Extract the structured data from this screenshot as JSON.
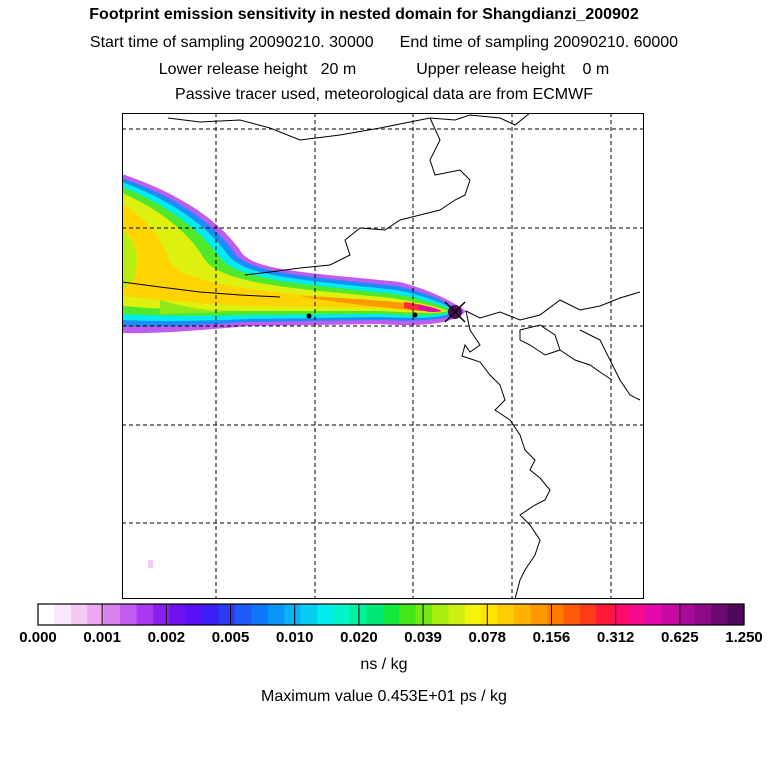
{
  "header": {
    "title": "Footprint emission sensitivity in nested domain for Shangdianzi_200902",
    "start_label": "Start time of sampling 20090210. 30000",
    "end_label": "End time of sampling 20090210. 60000",
    "lower_label": "Lower release height   20 m",
    "upper_label": "Upper release height    0 m",
    "tracer_label": "Passive tracer used, meteorological data are from ECMWF"
  },
  "colorbar": {
    "labels": [
      "0.000",
      "0.001",
      "0.002",
      "0.005",
      "0.010",
      "0.020",
      "0.039",
      "0.078",
      "0.156",
      "0.312",
      "0.625",
      "1.250"
    ],
    "colors": [
      "#ffffff",
      "#fbe6fb",
      "#f4c9f5",
      "#eea8f2",
      "#d982ef",
      "#c15cf0",
      "#a93af1",
      "#8a1ef0",
      "#6f12f0",
      "#5a10f5",
      "#3c1ff5",
      "#2a3cf7",
      "#1e5bf8",
      "#0f78f9",
      "#0b95f9",
      "#0ab2f8",
      "#08cdf3",
      "#00ecee",
      "#00f5c8",
      "#00f0a0",
      "#00e878",
      "#12e83e",
      "#42e81c",
      "#74ea12",
      "#a6ee10",
      "#cff010",
      "#f3f30e",
      "#ffe400",
      "#ffcc00",
      "#ffb300",
      "#ff9800",
      "#ff7c00",
      "#ff5a0a",
      "#ff3a1a",
      "#ff1a3a",
      "#ff0a6a",
      "#f50a8f",
      "#e00aa8",
      "#c80aa5",
      "#aa0a9a",
      "#8a0a88",
      "#6a0a70",
      "#4c0a58"
    ],
    "units": "ns / kg",
    "max_value": "Maximum value  0.453E+01 ps / kg"
  }
}
